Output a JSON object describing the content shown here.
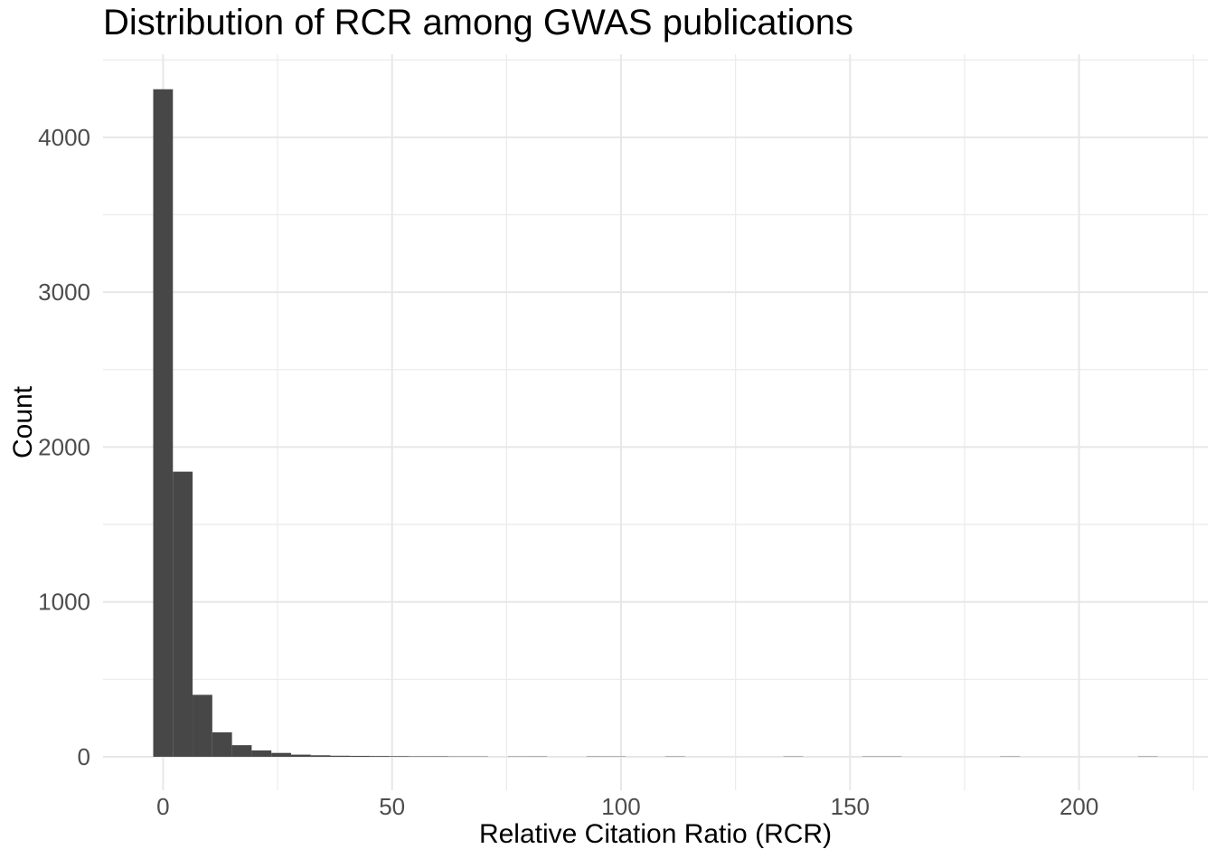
{
  "page": {
    "background": "#FFFFFF"
  },
  "chart_data": {
    "type": "bar",
    "subtype": "histogram",
    "title": "Distribution of RCR among GWAS publications",
    "xlabel": "Relative Citation Ratio (RCR)",
    "ylabel": "Count",
    "bin_width": 4.3,
    "bin_centers": [
      0,
      4.3,
      8.6,
      12.9,
      17.2,
      21.5,
      25.8,
      30.1,
      34.4,
      38.7,
      43,
      47.3,
      51.6,
      55.9,
      60.2,
      64.5,
      68.8,
      73.1,
      77.4,
      81.7,
      86,
      90.3,
      94.6,
      98.9,
      103.2,
      107.5,
      111.8,
      116.1,
      120.4,
      124.7,
      129,
      133.3,
      137.6,
      141.9,
      146.2,
      150.5,
      154.8,
      159.1,
      163.4,
      167.7,
      172,
      176.3,
      180.6,
      184.9,
      189.2,
      193.5,
      197.8,
      202.1,
      206.4,
      210.7,
      215
    ],
    "counts": [
      4310,
      1841,
      400,
      158,
      75,
      41,
      25,
      14,
      10,
      7,
      6,
      5,
      4,
      3,
      3,
      2,
      2,
      0,
      1,
      2,
      0,
      0,
      2,
      1,
      0,
      0,
      1,
      0,
      0,
      0,
      0,
      0,
      1,
      0,
      0,
      0,
      1,
      1,
      0,
      0,
      0,
      0,
      0,
      1,
      0,
      0,
      0,
      0,
      0,
      0,
      1
    ],
    "x_ticks_major": [
      0,
      50,
      100,
      150,
      200
    ],
    "x_ticks_minor": [
      25,
      75,
      125,
      175,
      225
    ],
    "y_ticks_major": [
      0,
      1000,
      2000,
      3000,
      4000
    ],
    "y_ticks_minor": [
      500,
      1500,
      2500,
      3500,
      4500
    ],
    "xlim": [
      -13.1,
      228.1
    ],
    "ylim": [
      -216,
      4536
    ],
    "grid": true,
    "legend": false,
    "colors": {
      "bar_fill": "#474747",
      "grid_major": "#E7E7E7",
      "grid_minor": "#ECECEC",
      "tick_label": "#4D4D4D",
      "title": "#000000",
      "axis_title": "#000000",
      "background": "#FFFFFF"
    }
  }
}
